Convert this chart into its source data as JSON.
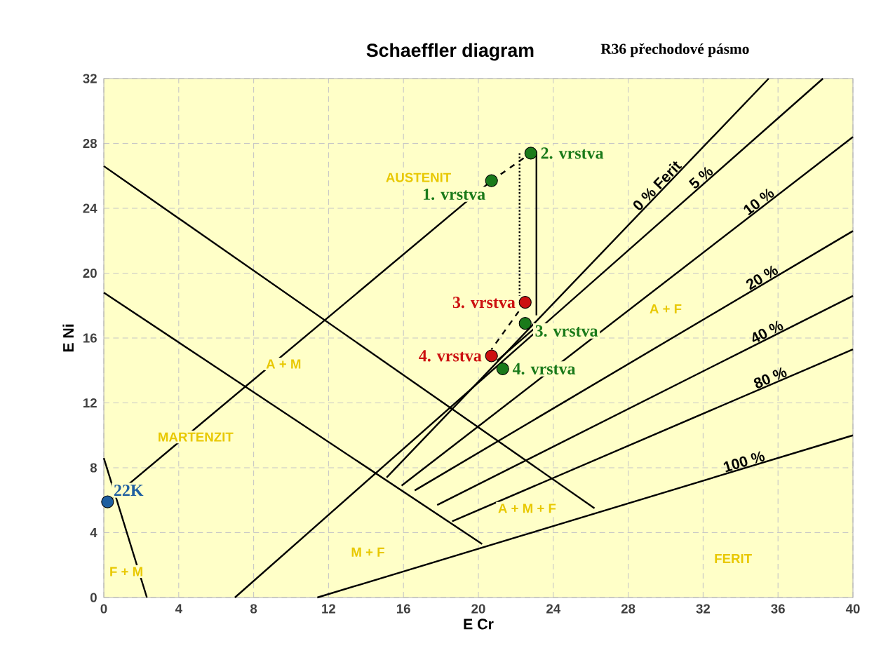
{
  "chart_data": {
    "type": "line",
    "title": "Schaeffler diagram",
    "subtitle": "R36 přechodové pásmo",
    "xlabel": "E Cr",
    "ylabel": "E Ni",
    "xlim": [
      0,
      40
    ],
    "ylim": [
      0,
      32
    ],
    "xticks": [
      0,
      4,
      8,
      12,
      16,
      20,
      24,
      28,
      32,
      36,
      40
    ],
    "yticks": [
      0,
      4,
      8,
      12,
      16,
      20,
      24,
      28,
      32
    ],
    "grid": true,
    "series": [
      {
        "type": "line",
        "x": [
          0,
          26.2
        ],
        "values": [
          26.6,
          5.5
        ],
        "color": "#000000"
      },
      {
        "type": "line",
        "x": [
          0,
          20.2
        ],
        "values": [
          18.8,
          3.3
        ],
        "color": "#000000"
      },
      {
        "type": "line",
        "x": [
          0,
          2.3
        ],
        "values": [
          8.6,
          0
        ],
        "color": "#000000"
      },
      {
        "type": "line",
        "name": "0 % Ferit",
        "x": [
          15.1,
          35.5
        ],
        "values": [
          7.4,
          32
        ],
        "color": "#000000"
      },
      {
        "type": "line",
        "name": "5 %",
        "x": [
          7.0,
          38.4
        ],
        "values": [
          0,
          32
        ],
        "color": "#000000"
      },
      {
        "type": "line",
        "name": "10 %",
        "x": [
          15.9,
          40
        ],
        "values": [
          6.9,
          28.4
        ],
        "color": "#000000"
      },
      {
        "type": "line",
        "name": "20 %",
        "x": [
          16.6,
          40
        ],
        "values": [
          6.6,
          22.6
        ],
        "color": "#000000"
      },
      {
        "type": "line",
        "name": "40 %",
        "x": [
          17.8,
          40
        ],
        "values": [
          5.7,
          18.6
        ],
        "color": "#000000"
      },
      {
        "type": "line",
        "name": "80 %",
        "x": [
          18.6,
          40
        ],
        "values": [
          4.7,
          15.3
        ],
        "color": "#000000"
      },
      {
        "type": "line",
        "name": "100 %",
        "x": [
          11.4,
          40
        ],
        "values": [
          0,
          10.0
        ],
        "color": "#000000"
      },
      {
        "type": "line",
        "x": [
          0.2,
          20.7
        ],
        "values": [
          5.9,
          25.7
        ],
        "color": "#000000"
      },
      {
        "type": "line",
        "x": [
          20.7,
          22.8
        ],
        "values": [
          25.7,
          27.4
        ],
        "color": "#000000",
        "line_style": "dashed"
      },
      {
        "type": "line",
        "x": [
          23.1,
          23.1
        ],
        "values": [
          27.5,
          17.4
        ],
        "color": "#000000"
      },
      {
        "type": "line",
        "x": [
          22.2,
          22.2
        ],
        "values": [
          27.4,
          18.6
        ],
        "color": "#000000",
        "line_style": "dotted"
      },
      {
        "type": "line",
        "x": [
          22.5,
          20.7
        ],
        "values": [
          18.2,
          15.3
        ],
        "color": "#000000",
        "line_style": "dashed"
      },
      {
        "type": "line",
        "x": [
          23.0,
          21.0
        ],
        "values": [
          16.6,
          14.6
        ],
        "color": "#000000"
      },
      {
        "type": "scatter",
        "name": "22K",
        "x": [
          0.2
        ],
        "values": [
          5.9
        ],
        "color": "#1f5fa0",
        "marker": "circle"
      },
      {
        "type": "scatter",
        "name": "1. vrstva",
        "x": [
          20.7
        ],
        "values": [
          25.7
        ],
        "color": "#1a7a1a",
        "marker": "circle"
      },
      {
        "type": "scatter",
        "name": "2. vrstva",
        "x": [
          22.8
        ],
        "values": [
          27.4
        ],
        "color": "#1a7a1a",
        "marker": "circle"
      },
      {
        "type": "scatter",
        "name": "3. vrstva",
        "x": [
          22.5
        ],
        "values": [
          18.2
        ],
        "color": "#cc1010",
        "marker": "circle"
      },
      {
        "type": "scatter",
        "name": "3. vrstva",
        "x": [
          22.5
        ],
        "values": [
          16.9
        ],
        "color": "#1a7a1a",
        "marker": "circle"
      },
      {
        "type": "scatter",
        "name": "4. vrstva",
        "x": [
          20.7
        ],
        "values": [
          14.9
        ],
        "color": "#cc1010",
        "marker": "circle"
      },
      {
        "type": "scatter",
        "name": "4. vrstva",
        "x": [
          21.3
        ],
        "values": [
          14.1
        ],
        "color": "#1a7a1a",
        "marker": "circle"
      }
    ],
    "annotations": [
      "AUSTENIT",
      "A + M",
      "MARTENZIT",
      "A + M + F",
      "M + F",
      "F + M",
      "FERIT",
      "A + F"
    ]
  }
}
